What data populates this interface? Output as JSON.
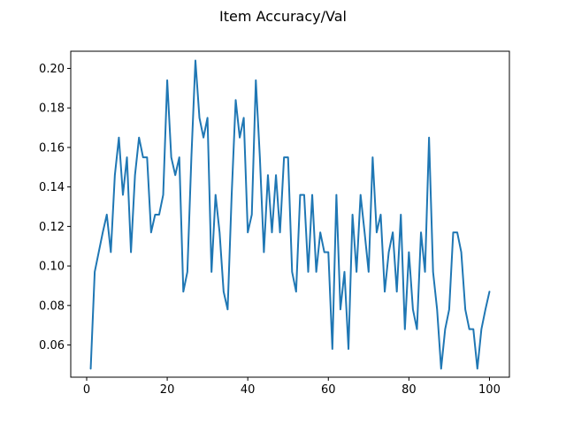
{
  "chart_data": {
    "type": "line",
    "title": "Item Accuracy/Val",
    "xlabel": "",
    "ylabel": "",
    "xlim": [
      -3.95,
      104.95
    ],
    "ylim": [
      0.0437,
      0.2087
    ],
    "x_ticks": [
      0,
      20,
      40,
      60,
      80,
      100
    ],
    "x_tick_labels": [
      "0",
      "20",
      "40",
      "60",
      "80",
      "100"
    ],
    "y_ticks": [
      0.06,
      0.08,
      0.1,
      0.12,
      0.14,
      0.16,
      0.18,
      0.2
    ],
    "y_tick_labels": [
      "0.06",
      "0.08",
      "0.10",
      "0.12",
      "0.14",
      "0.16",
      "0.18",
      "0.20"
    ],
    "grid": false,
    "line_color": "#1f77b4",
    "series": [
      {
        "x": [
          1,
          2,
          3,
          4,
          5,
          6,
          7,
          8,
          9,
          10,
          11,
          12,
          13,
          14,
          15,
          16,
          17,
          18,
          19,
          20,
          21,
          22,
          23,
          24,
          25,
          26,
          27,
          28,
          29,
          30,
          31,
          32,
          33,
          34,
          35,
          36,
          37,
          38,
          39,
          40,
          41,
          42,
          43,
          44,
          45,
          46,
          47,
          48,
          49,
          50,
          51,
          52,
          53,
          54,
          55,
          56,
          57,
          58,
          59,
          60,
          61,
          62,
          63,
          64,
          65,
          66,
          67,
          68,
          69,
          70,
          71,
          72,
          73,
          74,
          75,
          76,
          77,
          78,
          79,
          80,
          81,
          82,
          83,
          84,
          85,
          86,
          87,
          88,
          89,
          90,
          91,
          92,
          93,
          94,
          95,
          96,
          97,
          98,
          99,
          100
        ],
        "values": [
          0.048,
          0.097,
          0.107,
          0.117,
          0.126,
          0.107,
          0.146,
          0.165,
          0.136,
          0.155,
          0.107,
          0.146,
          0.165,
          0.155,
          0.155,
          0.117,
          0.126,
          0.126,
          0.136,
          0.194,
          0.155,
          0.146,
          0.155,
          0.087,
          0.097,
          0.155,
          0.204,
          0.175,
          0.165,
          0.175,
          0.097,
          0.136,
          0.117,
          0.087,
          0.078,
          0.136,
          0.184,
          0.165,
          0.175,
          0.117,
          0.126,
          0.194,
          0.155,
          0.107,
          0.146,
          0.117,
          0.146,
          0.117,
          0.155,
          0.155,
          0.097,
          0.087,
          0.136,
          0.136,
          0.097,
          0.136,
          0.097,
          0.117,
          0.107,
          0.107,
          0.058,
          0.136,
          0.078,
          0.097,
          0.058,
          0.126,
          0.097,
          0.136,
          0.117,
          0.097,
          0.155,
          0.117,
          0.126,
          0.087,
          0.107,
          0.117,
          0.087,
          0.126,
          0.068,
          0.107,
          0.078,
          0.068,
          0.117,
          0.097,
          0.165,
          0.097,
          0.078,
          0.048,
          0.068,
          0.078,
          0.117,
          0.117,
          0.107,
          0.078,
          0.068,
          0.068,
          0.048,
          0.068,
          0.078,
          0.087
        ]
      }
    ]
  }
}
